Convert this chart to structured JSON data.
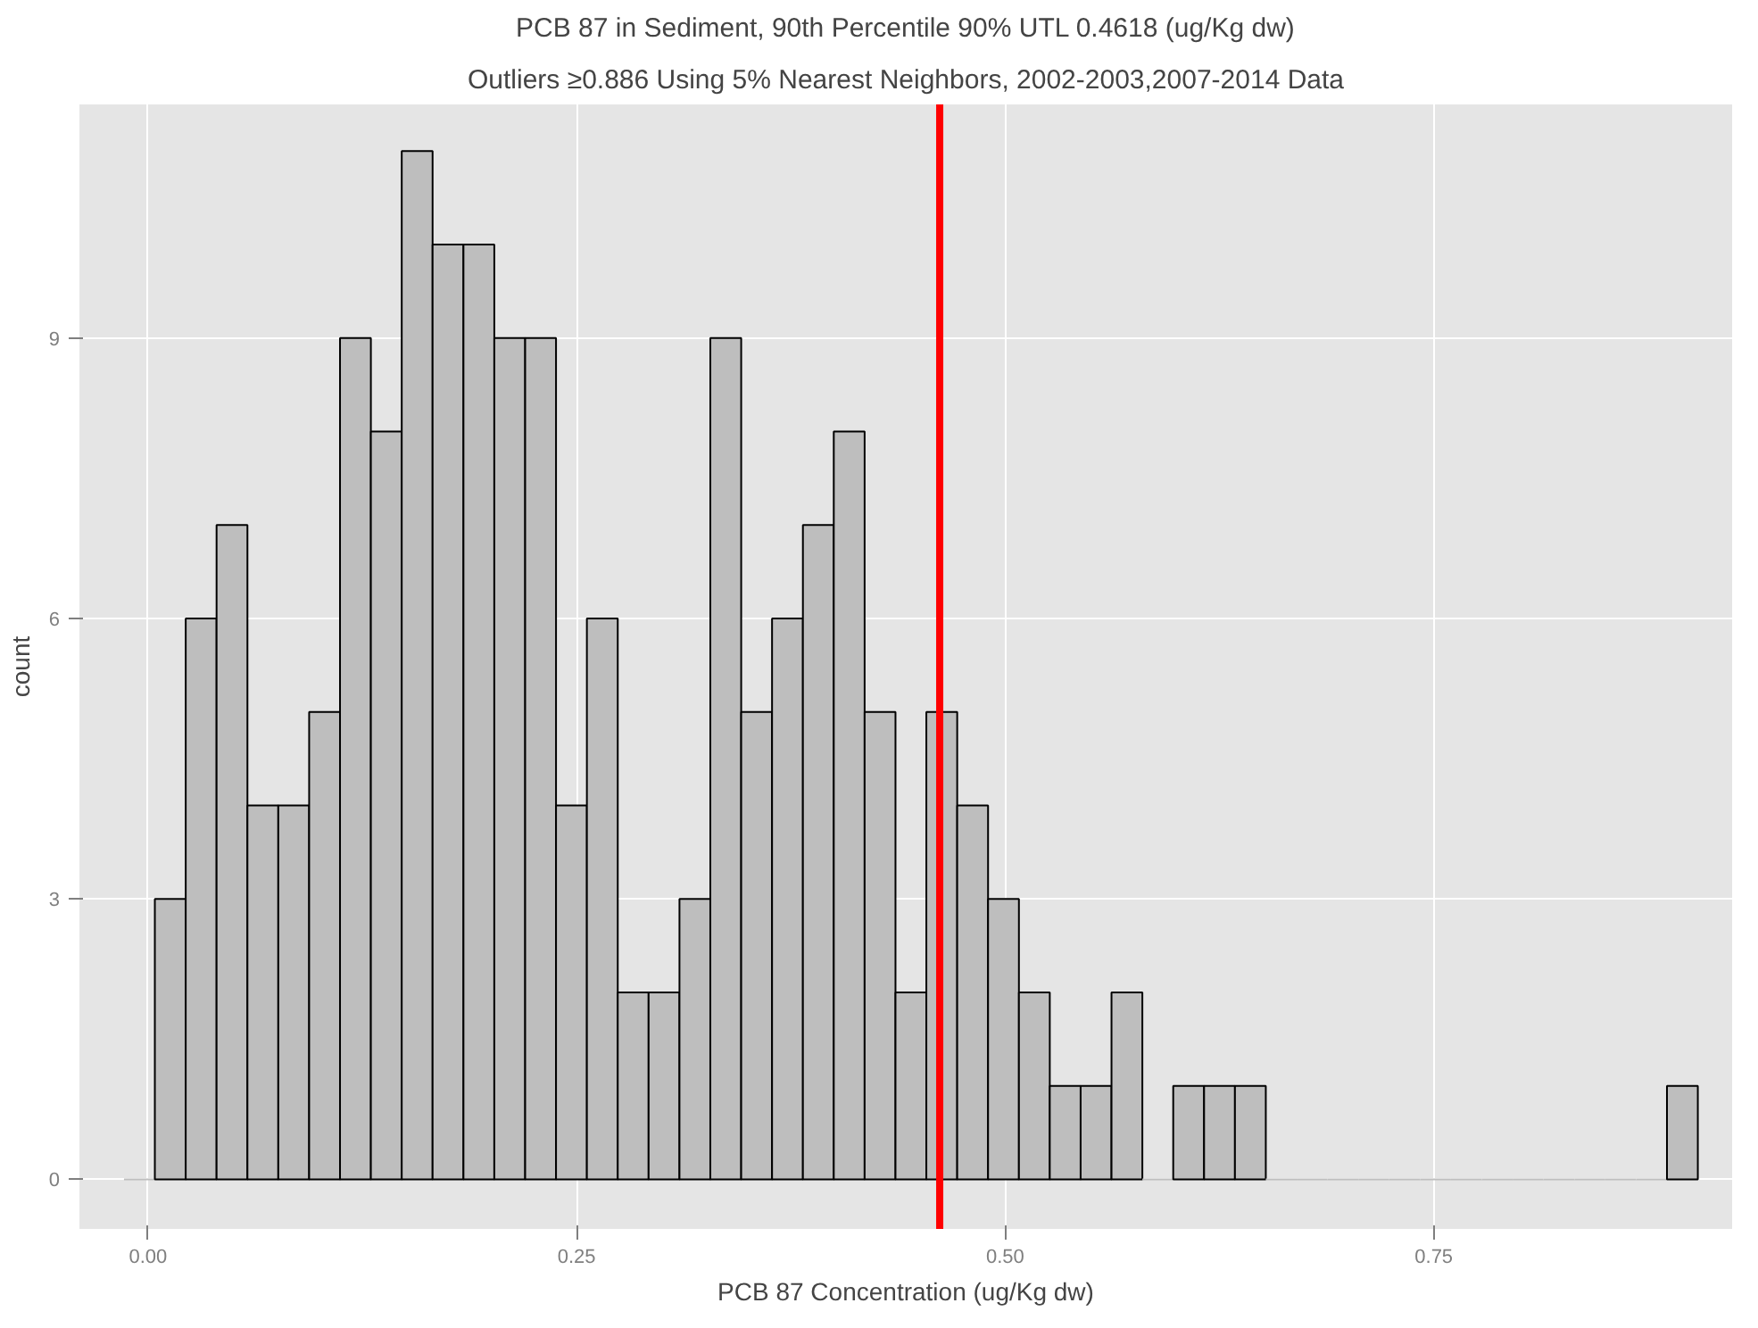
{
  "chart_data": {
    "type": "histogram",
    "title": "PCB 87 in Sediment, 90th Percentile 90% UTL 0.4618 (ug/Kg dw)",
    "subtitle": "Outliers ≥0.886 Using 5% Nearest Neighbors, 2002-2003,2007-2014 Data",
    "xlabel": "PCB 87 Concentration (ug/Kg dw)",
    "ylabel": "count",
    "bins": [
      -0.014,
      0.004,
      0.022,
      0.04,
      0.058,
      0.076,
      0.094,
      0.112,
      0.13,
      0.148,
      0.166,
      0.184,
      0.202,
      0.22,
      0.238,
      0.256,
      0.274,
      0.292,
      0.31,
      0.328,
      0.346,
      0.364,
      0.382,
      0.4,
      0.418,
      0.436,
      0.454,
      0.472,
      0.49,
      0.508,
      0.526,
      0.544,
      0.562,
      0.58,
      0.598,
      0.616,
      0.634,
      0.652,
      0.67,
      0.688,
      0.706,
      0.724,
      0.742,
      0.76,
      0.778,
      0.796,
      0.814,
      0.832,
      0.85,
      0.868,
      0.886,
      0.904
    ],
    "values": [
      0,
      3,
      6,
      7,
      4,
      4,
      5,
      9,
      8,
      11,
      10,
      10,
      9,
      9,
      4,
      6,
      2,
      2,
      3,
      9,
      5,
      6,
      7,
      8,
      5,
      2,
      5,
      4,
      3,
      2,
      1,
      1,
      2,
      0,
      1,
      1,
      1,
      0,
      0,
      0,
      0,
      0,
      0,
      0,
      0,
      0,
      0,
      0,
      0,
      0,
      1
    ],
    "color": "#bebebe",
    "xlim": [
      -0.04,
      0.924
    ],
    "ylim": [
      -0.53,
      11.5
    ],
    "xticks": [
      {
        "value": 0,
        "label": "0.00"
      },
      {
        "value": 0.25,
        "label": "0.25"
      },
      {
        "value": 0.5,
        "label": "0.50"
      },
      {
        "value": 0.75,
        "label": "0.75"
      }
    ],
    "yticks": [
      0,
      3,
      6,
      9
    ],
    "grid": true,
    "ref_lines": [
      {
        "axis": "x",
        "value": 0.4618,
        "color": "#ff0000"
      }
    ]
  }
}
